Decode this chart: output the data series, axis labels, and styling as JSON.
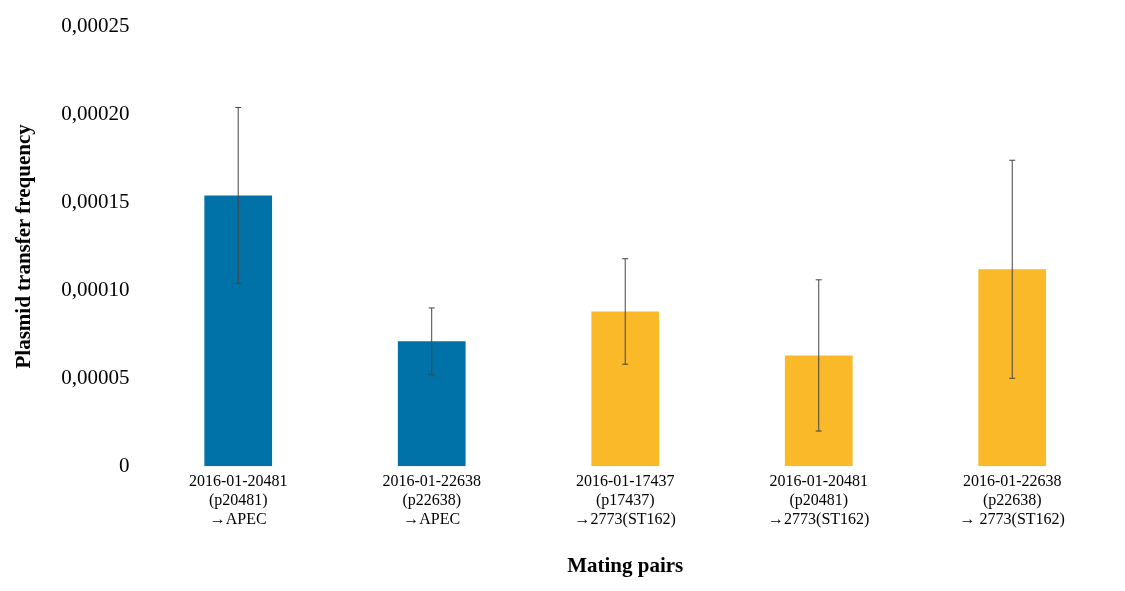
{
  "chart_data": {
    "type": "bar",
    "xlabel": "Mating pairs",
    "ylabel": "Plasmid transfer frequency",
    "categories": [
      "2016-01-20481\n(p20481)\n→APEC",
      "2016-01-22638\n(p22638)\n→APEC",
      "2016-01-17437\n(p17437)\n→2773(ST162)",
      "2016-01-20481\n(p20481)\n→2773(ST162)",
      "2016-01-22638\n(p22638)\n→ 2773(ST162)"
    ],
    "values": [
      0.000154,
      7.1e-05,
      8.8e-05,
      6.3e-05,
      0.000112
    ],
    "errors": [
      5e-05,
      1.9e-05,
      3e-05,
      4.3e-05,
      6.2e-05
    ],
    "colors": [
      "#0072a8",
      "#0072a8",
      "#f9b928",
      "#f9b928",
      "#f9b928"
    ],
    "ylim": [
      0,
      0.00025
    ],
    "yticks": [
      0,
      {
        "value": 5e-05,
        "label": "0,00005"
      },
      {
        "value": 0.0001,
        "label": "0,00010"
      },
      {
        "value": 0.00015,
        "label": "0,00015"
      },
      {
        "value": 0.0002,
        "label": "0,00020"
      },
      {
        "value": 0.00025,
        "label": "0,00025"
      }
    ],
    "grid": false,
    "legend": false
  }
}
